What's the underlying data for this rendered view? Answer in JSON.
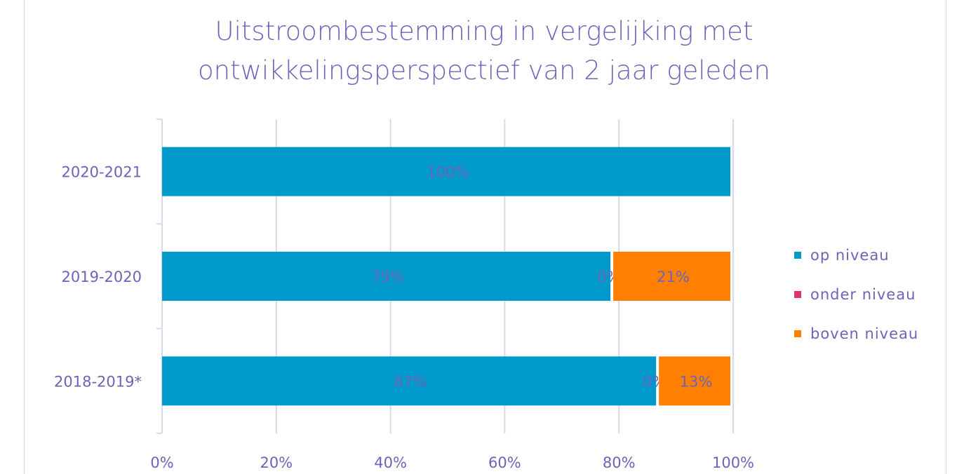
{
  "chart_data": {
    "type": "bar",
    "orientation": "horizontal",
    "stacked": true,
    "title": [
      "Uitstroombestemming in vergelijking met",
      "ontwikkelingsperspectief van 2 jaar geleden"
    ],
    "categories": [
      "2020-2021",
      "2019-2020",
      "2018-2019*"
    ],
    "series": [
      {
        "name": "op niveau",
        "color": "#0099cc",
        "values": [
          100,
          79,
          87
        ],
        "labels": [
          "100%",
          "79%",
          "87%"
        ]
      },
      {
        "name": "onder niveau",
        "color": "#e0336b",
        "values": [
          0,
          0,
          0
        ],
        "labels": [
          "",
          "0%",
          "0%"
        ]
      },
      {
        "name": "boven niveau",
        "color": "#ff8000",
        "values": [
          0,
          21,
          13
        ],
        "labels": [
          "",
          "21%",
          "13%"
        ]
      }
    ],
    "x_ticks": [
      "0%",
      "20%",
      "40%",
      "60%",
      "80%",
      "100%"
    ],
    "xlim": [
      0,
      100
    ],
    "grid": true,
    "legend": "right"
  }
}
